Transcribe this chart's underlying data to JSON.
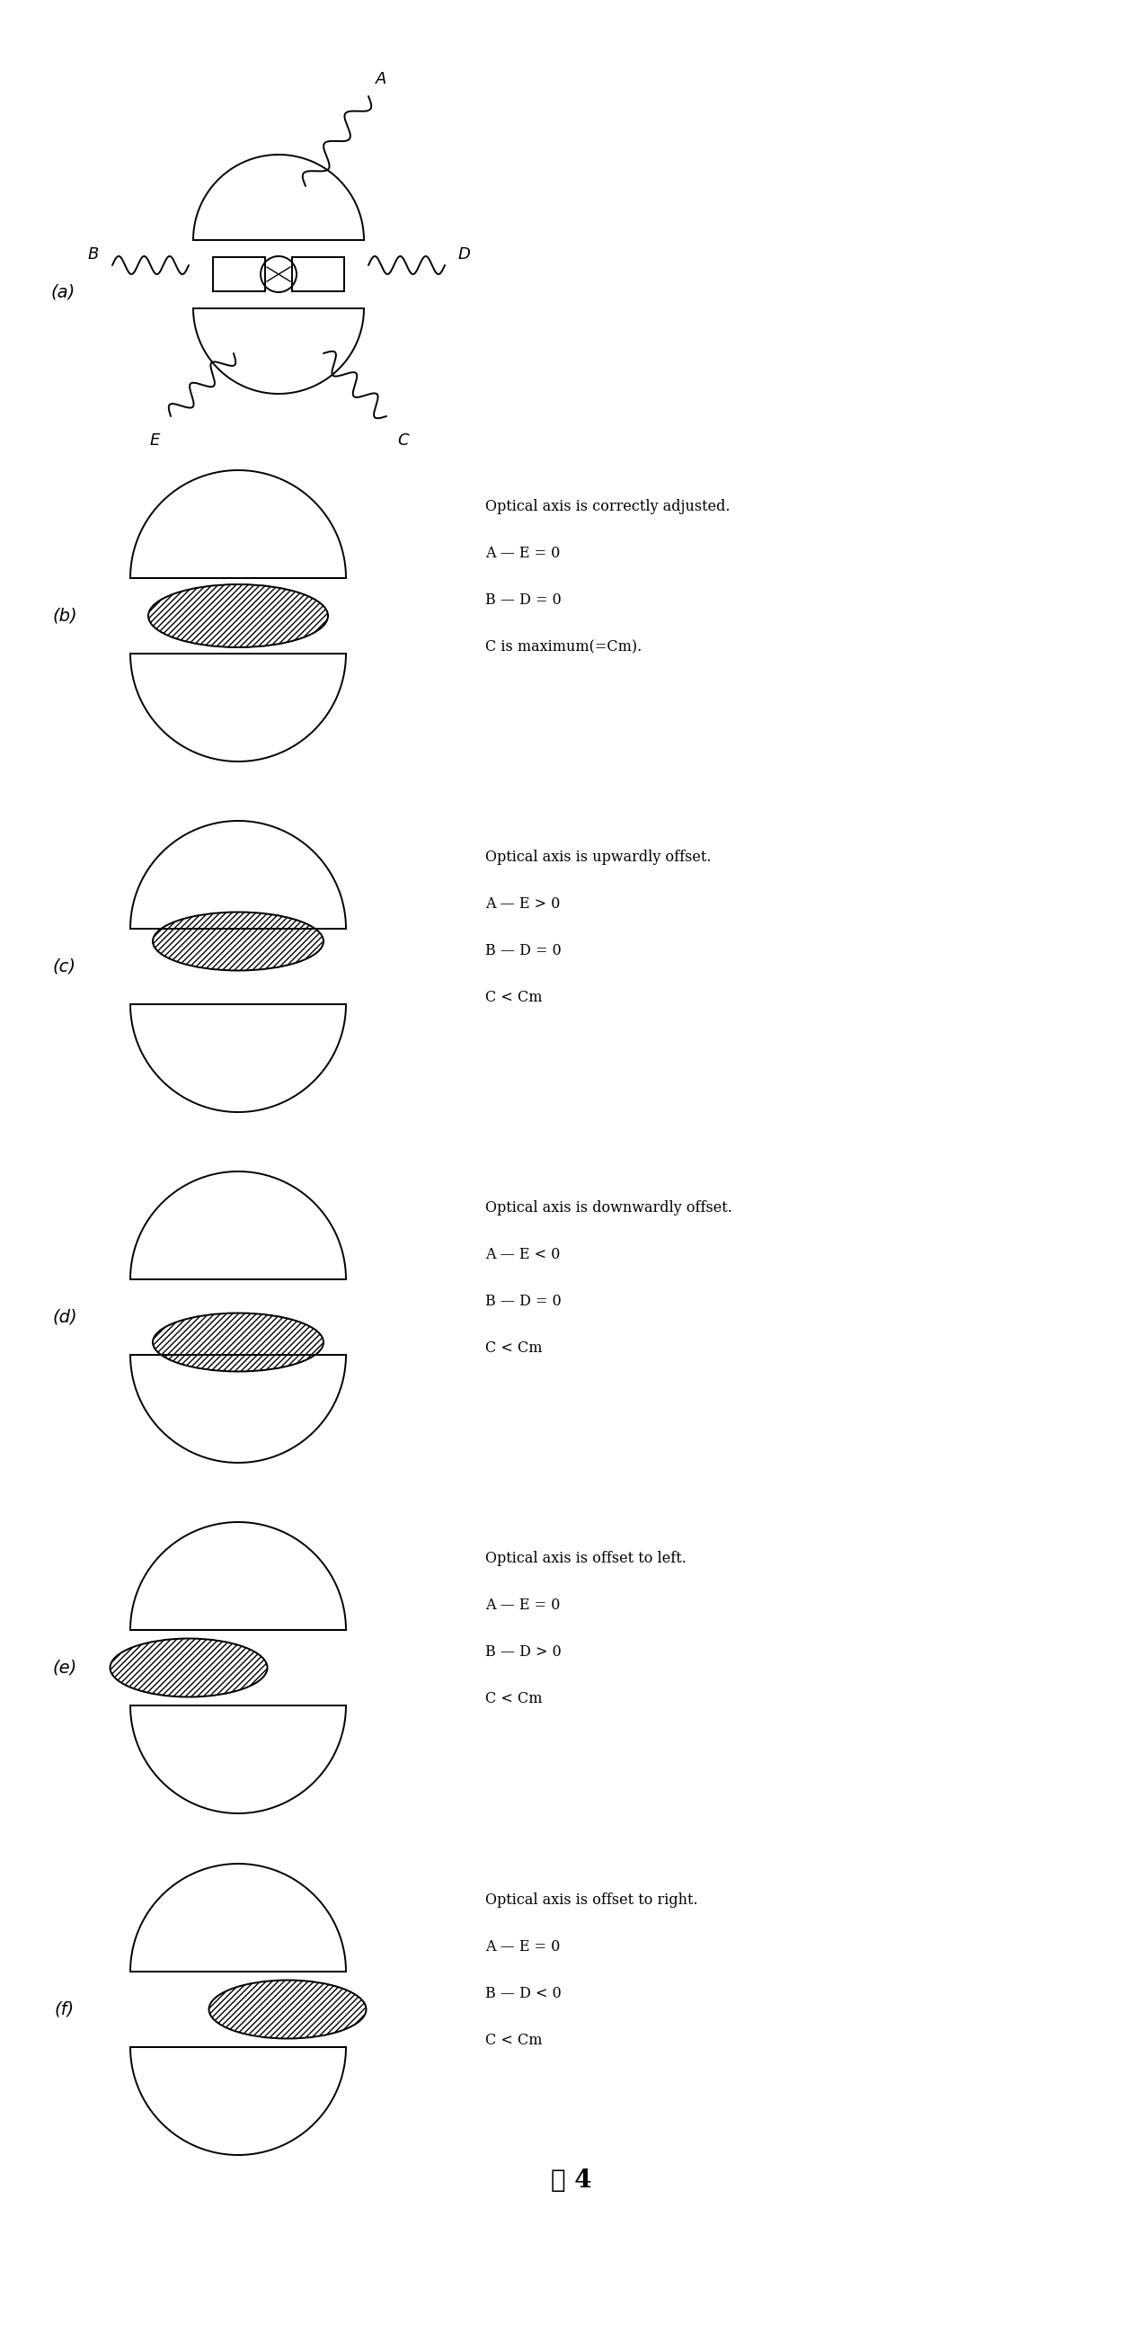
{
  "title": "图 4",
  "fig_width": 12.72,
  "fig_height": 26.05,
  "bg_color": "#ffffff",
  "panel_texts": [
    "Optical axis is correctly adjusted.\nA — E = 0\nB — D = 0\nC is maximum(=Cm).",
    "Optical axis is upwardly offset.\nA — E > 0\nB — D = 0\nC < Cm",
    "Optical axis is downwardly offset.\nA — E < 0\nB — D = 0\nC < Cm",
    "Optical axis is offset to left.\nA — E = 0\nB — D > 0\nC < Cm",
    "Optical axis is offset to right.\nA — E = 0\nB — D < 0\nC < Cm"
  ],
  "lw": 1.4,
  "hatch_lw": 0.7
}
